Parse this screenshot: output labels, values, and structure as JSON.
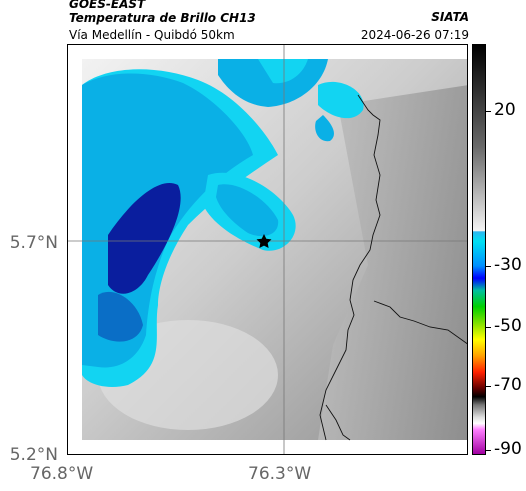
{
  "header": {
    "title": "GOES-EAST",
    "subtitle": "Temperatura de Brillo CH13",
    "route": "Vía Medellín - Quibdó 50km",
    "agency": "SIATA",
    "datetime": "2024-06-26 07:19"
  },
  "map": {
    "lat_labels": [
      "5.7°N",
      "5.2°N"
    ],
    "lon_labels": [
      "76.8°W",
      "76.3°W"
    ],
    "marker": "star-marker",
    "colors": {
      "cloud_dark": "#0a1e9e",
      "cloud_mid": "#0ab0e6",
      "cloud_light": "#12d4f2",
      "land_gray": "#a8a8a8",
      "border": "#000000"
    }
  },
  "colorbar": {
    "ticks": [
      "20",
      "-30",
      "-50",
      "-70",
      "-90"
    ]
  }
}
